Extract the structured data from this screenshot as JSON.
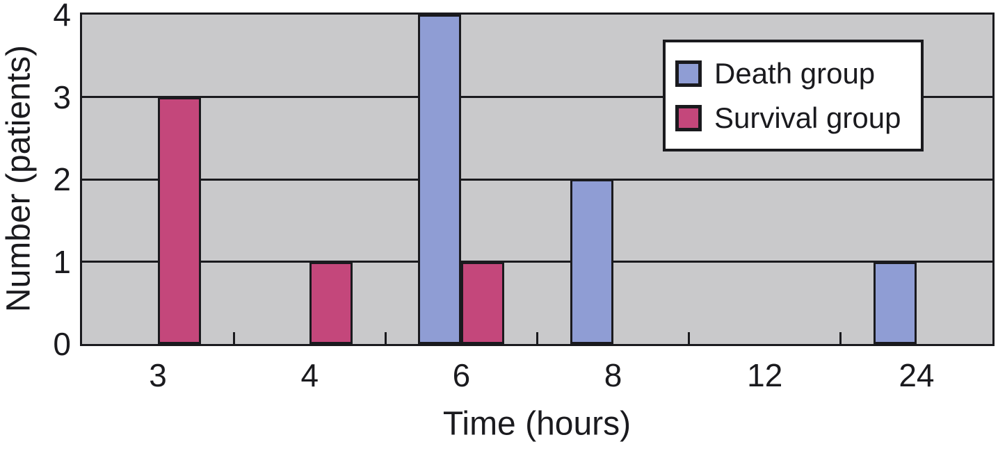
{
  "chart_data": {
    "type": "bar",
    "title": "",
    "xlabel": "Time (hours)",
    "ylabel": "Number (patients)",
    "categories": [
      "3",
      "4",
      "6",
      "8",
      "12",
      "24"
    ],
    "series": [
      {
        "name": "Death group",
        "color": "#8f9dd4",
        "values": [
          0,
          0,
          4,
          2,
          0,
          1
        ]
      },
      {
        "name": "Survival group",
        "color": "#c4477b",
        "values": [
          3,
          1,
          1,
          0,
          0,
          0
        ]
      }
    ],
    "ylim": [
      0,
      4
    ],
    "yticks": [
      0,
      1,
      2,
      3,
      4
    ],
    "grid": "horizontal",
    "legend_position": "top-right",
    "colors": {
      "plot_background": "#c9c9cb",
      "line": "#1a1a1e",
      "page_background": "#ffffff",
      "legend_background": "#ffffff"
    }
  }
}
